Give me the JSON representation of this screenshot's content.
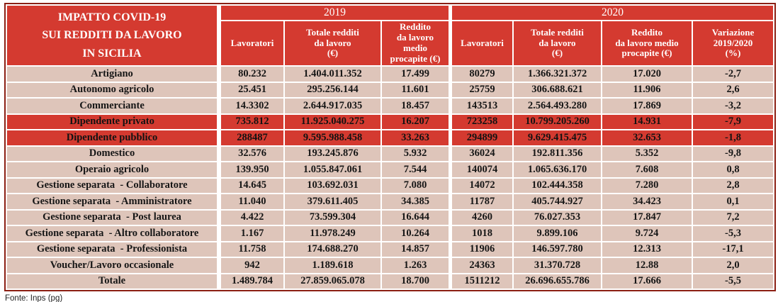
{
  "colors": {
    "header_red": "#D43A30",
    "highlight_red": "#D43A30",
    "row_pink": "#DEC5BA",
    "outer_border": "#8C2014",
    "header_text": "#FFFFFF",
    "body_text": "#161616"
  },
  "header": {
    "title": "IMPATTO COVID-19\nSUI REDDITI DA LAVORO\nIN SICILIA",
    "year_2019": "2019",
    "year_2020": "2020",
    "cols_2019": [
      "Lavoratori",
      "Totale redditi\nda lavoro\n(€)",
      "Reddito\nda lavoro\nmedio\nprocapite (€)"
    ],
    "cols_2020": [
      "Lavoratori",
      "Totale redditi\nda lavoro\n(€)",
      "Reddito\nda lavoro medio\nprocapite (€)",
      "Variazione\n2019/2020\n(%)"
    ]
  },
  "table": {
    "rows": [
      {
        "label": "Artigiano",
        "lavoratori_2019": "80.232",
        "totale_2019": "1.404.011.352",
        "medio_2019": "17.499",
        "lavoratori_2020": "80279",
        "totale_2020": "1.366.321.372",
        "medio_2020": "17.020",
        "variazione": "-2,7",
        "highlight": false
      },
      {
        "label": "Autonomo agricolo",
        "lavoratori_2019": "25.451",
        "totale_2019": "295.256.144",
        "medio_2019": "11.601",
        "lavoratori_2020": "25759",
        "totale_2020": "306.688.621",
        "medio_2020": "11.906",
        "variazione": "2,6",
        "highlight": false
      },
      {
        "label": "Commerciante",
        "lavoratori_2019": "14.3302",
        "totale_2019": "2.644.917.035",
        "medio_2019": "18.457",
        "lavoratori_2020": "143513",
        "totale_2020": "2.564.493.280",
        "medio_2020": "17.869",
        "variazione": "-3,2",
        "highlight": false
      },
      {
        "label": "Dipendente privato",
        "lavoratori_2019": "735.812",
        "totale_2019": "11.925.040.275",
        "medio_2019": "16.207",
        "lavoratori_2020": "723258",
        "totale_2020": "10.799.205.260",
        "medio_2020": "14.931",
        "variazione": "-7,9",
        "highlight": true
      },
      {
        "label": "Dipendente pubblico",
        "lavoratori_2019": "288487",
        "totale_2019": "9.595.988.458",
        "medio_2019": "33.263",
        "lavoratori_2020": "294899",
        "totale_2020": "9.629.415.475",
        "medio_2020": "32.653",
        "variazione": "-1,8",
        "highlight": true
      },
      {
        "label": "Domestico",
        "lavoratori_2019": "32.576",
        "totale_2019": "193.245.876",
        "medio_2019": "5.932",
        "lavoratori_2020": "36024",
        "totale_2020": "192.811.356",
        "medio_2020": "5.352",
        "variazione": "-9,8",
        "highlight": false
      },
      {
        "label": "Operaio agricolo",
        "lavoratori_2019": "139.950",
        "totale_2019": "1.055.847.061",
        "medio_2019": "7.544",
        "lavoratori_2020": "140074",
        "totale_2020": "1.065.636.170",
        "medio_2020": "7.608",
        "variazione": "0,8",
        "highlight": false
      },
      {
        "label": "Gestione separata  - Collaboratore",
        "lavoratori_2019": "14.645",
        "totale_2019": "103.692.031",
        "medio_2019": "7.080",
        "lavoratori_2020": "14072",
        "totale_2020": "102.444.358",
        "medio_2020": "7.280",
        "variazione": "2,8",
        "highlight": false
      },
      {
        "label": "Gestione separata  - Amministratore",
        "lavoratori_2019": "11.040",
        "totale_2019": "379.611.405",
        "medio_2019": "34.385",
        "lavoratori_2020": "11787",
        "totale_2020": "405.744.927",
        "medio_2020": "34.423",
        "variazione": "0,1",
        "highlight": false
      },
      {
        "label": "Gestione separata  - Post laurea",
        "lavoratori_2019": "4.422",
        "totale_2019": "73.599.304",
        "medio_2019": "16.644",
        "lavoratori_2020": "4260",
        "totale_2020": "76.027.353",
        "medio_2020": "17.847",
        "variazione": "7,2",
        "highlight": false
      },
      {
        "label": "Gestione separata  - Altro collaboratore",
        "lavoratori_2019": "1.167",
        "totale_2019": "11.978.249",
        "medio_2019": "10.264",
        "lavoratori_2020": "1018",
        "totale_2020": "9.899.106",
        "medio_2020": "9.724",
        "variazione": "-5,3",
        "highlight": false
      },
      {
        "label": "Gestione separata  - Professionista",
        "lavoratori_2019": "11.758",
        "totale_2019": "174.688.270",
        "medio_2019": "14.857",
        "lavoratori_2020": "11906",
        "totale_2020": "146.597.780",
        "medio_2020": "12.313",
        "variazione": "-17,1",
        "highlight": false
      },
      {
        "label": "Voucher/Lavoro occasionale",
        "lavoratori_2019": "942",
        "totale_2019": "1.189.618",
        "medio_2019": "1.263",
        "lavoratori_2020": "24363",
        "totale_2020": "31.370.728",
        "medio_2020": "12.88",
        "variazione": "2,0",
        "highlight": false
      },
      {
        "label": "Totale",
        "lavoratori_2019": "1.489.784",
        "totale_2019": "27.859.065.078",
        "medio_2019": "18.700",
        "lavoratori_2020": "1511212",
        "totale_2020": "26.696.655.786",
        "medio_2020": "17.666",
        "variazione": "-5,5",
        "highlight": false
      }
    ]
  },
  "footer": {
    "source": "Fonte: Inps (pg)"
  }
}
